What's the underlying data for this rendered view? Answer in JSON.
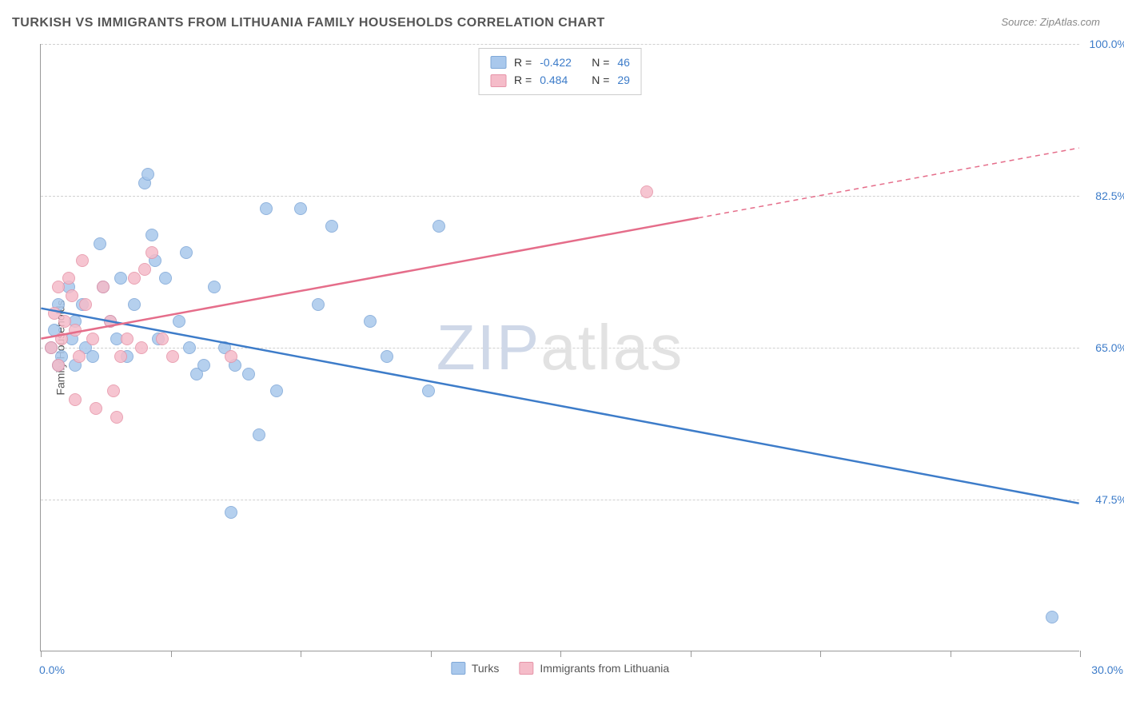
{
  "title": "TURKISH VS IMMIGRANTS FROM LITHUANIA FAMILY HOUSEHOLDS CORRELATION CHART",
  "source": "Source: ZipAtlas.com",
  "watermark": {
    "left": "ZIP",
    "right": "atlas"
  },
  "chart": {
    "type": "scatter",
    "ylabel": "Family Households",
    "xlim": [
      0,
      30
    ],
    "ylim": [
      30,
      100
    ],
    "xtick_positions": [
      0,
      3.75,
      7.5,
      11.25,
      15,
      18.75,
      22.5,
      26.25,
      30
    ],
    "xtick_labels_shown": {
      "0": "0.0%",
      "30": "30.0%"
    },
    "ytick_positions": [
      47.5,
      65.0,
      82.5,
      100.0
    ],
    "ytick_labels": [
      "47.5%",
      "65.0%",
      "82.5%",
      "100.0%"
    ],
    "grid_color": "#d0d0d0",
    "background_color": "#ffffff",
    "axis_color": "#999999",
    "axis_label_color": "#3d7cc9",
    "marker_size": 16,
    "series": [
      {
        "name": "Turks",
        "fill_color": "#a9c8ec",
        "border_color": "#7fa8d8",
        "line_color": "#3d7cc9",
        "line_width": 2.5,
        "R": "-0.422",
        "N": "46",
        "regression": {
          "x1": 0,
          "y1": 69.5,
          "x2": 30,
          "y2": 47.0,
          "dashed_from": null
        },
        "points": [
          [
            0.3,
            65
          ],
          [
            0.4,
            67
          ],
          [
            0.5,
            63
          ],
          [
            0.5,
            70
          ],
          [
            0.6,
            64
          ],
          [
            0.8,
            72
          ],
          [
            0.9,
            66
          ],
          [
            1.0,
            63
          ],
          [
            1.0,
            68
          ],
          [
            1.2,
            70
          ],
          [
            1.3,
            65
          ],
          [
            1.5,
            64
          ],
          [
            1.7,
            77
          ],
          [
            1.8,
            72
          ],
          [
            2.0,
            68
          ],
          [
            2.2,
            66
          ],
          [
            2.3,
            73
          ],
          [
            2.5,
            64
          ],
          [
            2.7,
            70
          ],
          [
            3.0,
            84
          ],
          [
            3.1,
            85
          ],
          [
            3.2,
            78
          ],
          [
            3.3,
            75
          ],
          [
            3.4,
            66
          ],
          [
            3.6,
            73
          ],
          [
            4.0,
            68
          ],
          [
            4.2,
            76
          ],
          [
            4.3,
            65
          ],
          [
            4.5,
            62
          ],
          [
            4.7,
            63
          ],
          [
            5.0,
            72
          ],
          [
            5.3,
            65
          ],
          [
            5.5,
            46
          ],
          [
            5.6,
            63
          ],
          [
            6.0,
            62
          ],
          [
            6.3,
            55
          ],
          [
            6.5,
            81
          ],
          [
            6.8,
            60
          ],
          [
            7.5,
            81
          ],
          [
            8.0,
            70
          ],
          [
            8.4,
            79
          ],
          [
            9.5,
            68
          ],
          [
            10.0,
            64
          ],
          [
            11.2,
            60
          ],
          [
            11.5,
            79
          ],
          [
            29.2,
            34
          ]
        ]
      },
      {
        "name": "Immigrants from Lithuania",
        "fill_color": "#f5bcc9",
        "border_color": "#e694a8",
        "line_color": "#e56d8a",
        "line_width": 2.5,
        "R": "0.484",
        "N": "29",
        "regression": {
          "x1": 0,
          "y1": 66.0,
          "x2": 30,
          "y2": 88.0,
          "dashed_from": 19
        },
        "points": [
          [
            0.3,
            65
          ],
          [
            0.4,
            69
          ],
          [
            0.5,
            63
          ],
          [
            0.5,
            72
          ],
          [
            0.6,
            66
          ],
          [
            0.7,
            68
          ],
          [
            0.8,
            73
          ],
          [
            0.9,
            71
          ],
          [
            1.0,
            59
          ],
          [
            1.0,
            67
          ],
          [
            1.1,
            64
          ],
          [
            1.2,
            75
          ],
          [
            1.3,
            70
          ],
          [
            1.5,
            66
          ],
          [
            1.6,
            58
          ],
          [
            1.8,
            72
          ],
          [
            2.0,
            68
          ],
          [
            2.1,
            60
          ],
          [
            2.2,
            57
          ],
          [
            2.3,
            64
          ],
          [
            2.5,
            66
          ],
          [
            2.7,
            73
          ],
          [
            2.9,
            65
          ],
          [
            3.0,
            74
          ],
          [
            3.2,
            76
          ],
          [
            3.5,
            66
          ],
          [
            3.8,
            64
          ],
          [
            5.5,
            64
          ],
          [
            17.5,
            83
          ]
        ]
      }
    ]
  },
  "legend_top": {
    "rows": [
      {
        "swatch_fill": "#a9c8ec",
        "swatch_border": "#7fa8d8",
        "r_label": "R =",
        "r_val": "-0.422",
        "n_label": "N =",
        "n_val": "46"
      },
      {
        "swatch_fill": "#f5bcc9",
        "swatch_border": "#e694a8",
        "r_label": "R =",
        "r_val": "0.484",
        "n_label": "N =",
        "n_val": "29"
      }
    ]
  },
  "legend_bottom": {
    "items": [
      {
        "swatch_fill": "#a9c8ec",
        "swatch_border": "#7fa8d8",
        "label": "Turks"
      },
      {
        "swatch_fill": "#f5bcc9",
        "swatch_border": "#e694a8",
        "label": "Immigrants from Lithuania"
      }
    ]
  }
}
